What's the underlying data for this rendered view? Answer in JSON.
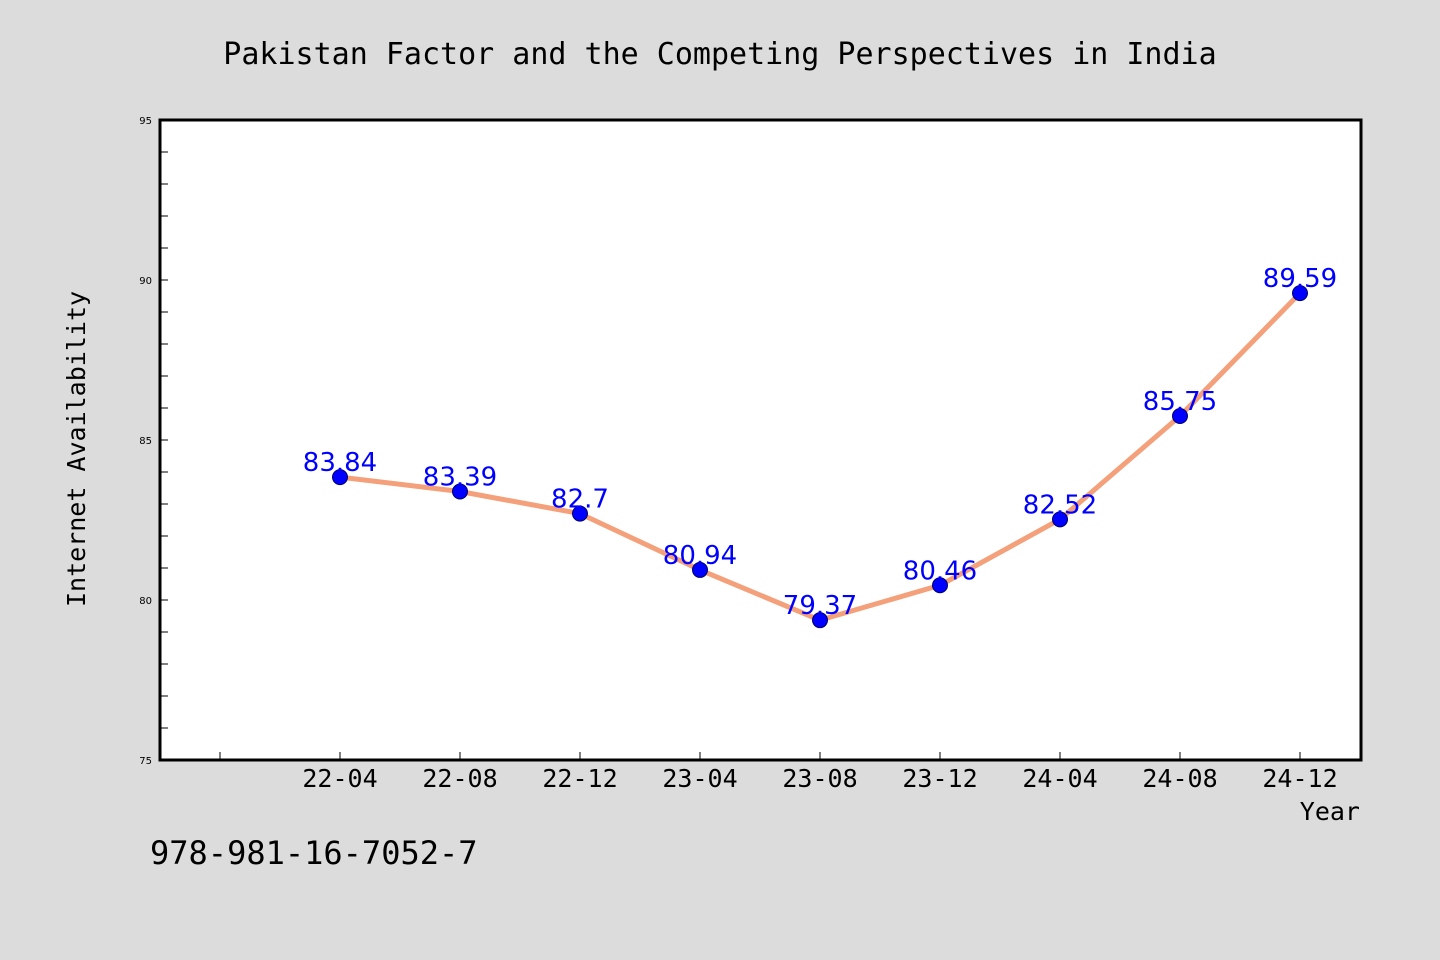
{
  "chart_data": {
    "type": "line",
    "title": "Pakistan Factor and the Competing Perspectives in India",
    "xlabel": "Year",
    "ylabel": "Internet Availability",
    "categories": [
      "22-04",
      "22-08",
      "22-12",
      "23-04",
      "23-08",
      "23-12",
      "24-04",
      "24-08",
      "24-12"
    ],
    "series": [
      {
        "values": [
          83.84,
          83.39,
          82.7,
          80.94,
          79.37,
          80.46,
          82.52,
          85.75,
          89.59
        ],
        "labels": [
          "83.84",
          "83.39",
          "82.7",
          "80.94",
          "79.37",
          "80.46",
          "82.52",
          "85.75",
          "89.59"
        ]
      }
    ],
    "yticks": [
      "75",
      "80",
      "85",
      "90",
      "95"
    ],
    "ylim": [
      75,
      95
    ],
    "grid": false,
    "line_color": "#f4a07a",
    "marker_color": "#0000ff",
    "label_color": "#0000ff",
    "background_color": "#dcdcdc"
  },
  "footer": {
    "isbn": "978-981-16-7052-7"
  }
}
